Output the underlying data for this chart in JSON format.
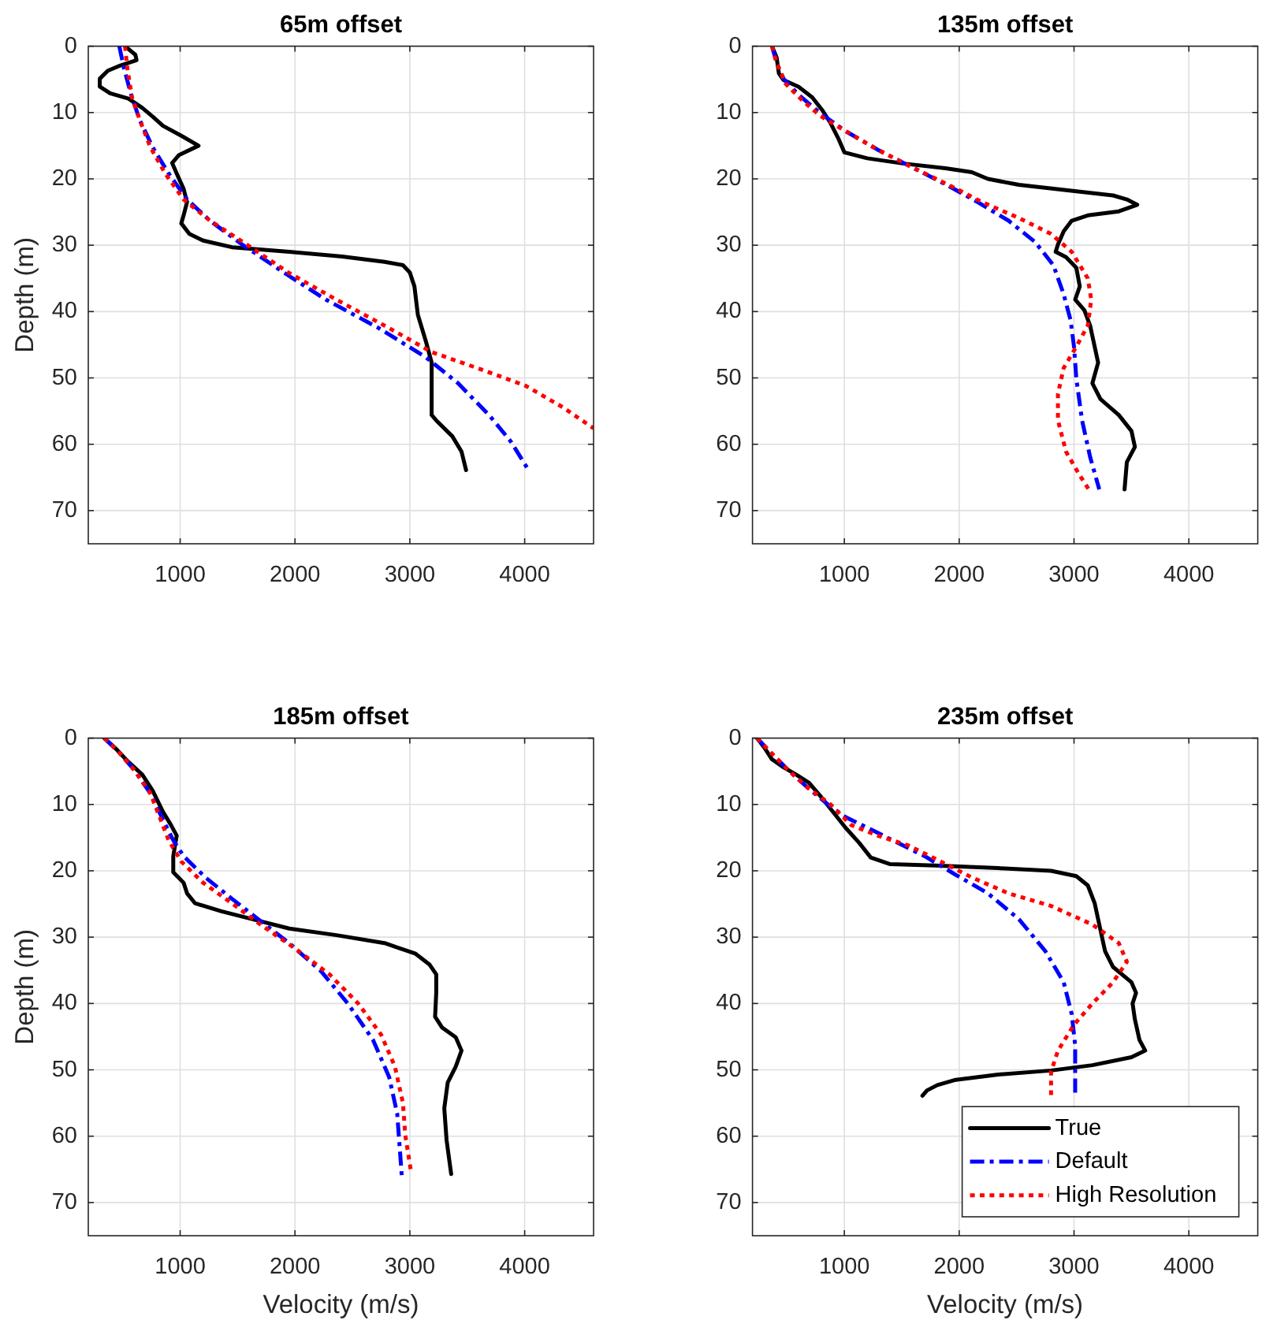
{
  "chart_data": [
    {
      "type": "line",
      "title": "65m offset",
      "ylabel": "Depth (m)",
      "xlim": [
        200,
        4600
      ],
      "xticks": [
        1000,
        2000,
        3000,
        4000
      ],
      "ylim": [
        75,
        0
      ],
      "yticks": [
        0,
        10,
        20,
        30,
        40,
        50,
        60,
        70
      ],
      "grid": true,
      "series": [
        {
          "color": "#000000",
          "line_style": "solid",
          "x": [
            520,
            610,
            620,
            480,
            370,
            300,
            300,
            390,
            550,
            670,
            760,
            850,
            1010,
            1160,
            990,
            930,
            980,
            1030,
            1060,
            1030,
            1010,
            1080,
            1200,
            1450,
            1950,
            2410,
            2780,
            2940,
            3000,
            3040,
            3070,
            3140,
            3190,
            3190,
            3230,
            3370,
            3450,
            3490
          ],
          "values": [
            0,
            1.3,
            2.1,
            2.9,
            3.7,
            4.9,
            6.1,
            7.1,
            7.9,
            9.3,
            10.6,
            12.0,
            13.5,
            15.0,
            16.4,
            17.6,
            19.6,
            21.5,
            23.5,
            25.5,
            26.7,
            28.3,
            29.3,
            30.3,
            31.0,
            31.7,
            32.5,
            33.0,
            34.1,
            36.2,
            40.5,
            44.5,
            47.7,
            55.6,
            56.4,
            58.8,
            61.1,
            63.9
          ]
        },
        {
          "color": "#0000ff",
          "line_style": "dashed",
          "x": [
            470,
            510,
            580,
            650,
            760,
            900,
            1060,
            1260,
            1540,
            1910,
            2270,
            2730,
            3140,
            3420,
            3690,
            3880,
            4030
          ],
          "values": [
            0,
            3.3,
            7.7,
            11.2,
            15.2,
            19.2,
            23.1,
            26.3,
            29.9,
            34.2,
            38.2,
            42.5,
            46.9,
            50.8,
            55.6,
            59.6,
            63.8
          ]
        },
        {
          "color": "#ff0000",
          "line_style": "dotted",
          "x": [
            520,
            540,
            580,
            650,
            740,
            870,
            1030,
            1260,
            1580,
            1950,
            2360,
            2820,
            3190,
            3650,
            4010,
            4330,
            4600
          ],
          "values": [
            0,
            3.3,
            7.7,
            11.2,
            15.2,
            19.2,
            23.1,
            26.3,
            29.9,
            34.2,
            38.2,
            42.5,
            46.1,
            48.9,
            51.2,
            54.4,
            57.6
          ]
        }
      ]
    },
    {
      "type": "line",
      "title": "135m offset",
      "xlim": [
        200,
        4600
      ],
      "xticks": [
        1000,
        2000,
        3000,
        4000
      ],
      "ylim": [
        75,
        0
      ],
      "yticks": [
        0,
        10,
        20,
        30,
        40,
        50,
        60,
        70
      ],
      "grid": true,
      "series": [
        {
          "color": "#000000",
          "line_style": "solid",
          "x": [
            370,
            410,
            430,
            470,
            600,
            720,
            810,
            880,
            950,
            1000,
            1200,
            1520,
            1880,
            2110,
            2250,
            2520,
            2930,
            3340,
            3460,
            3550,
            3390,
            3120,
            2980,
            2910,
            2860,
            2840,
            2930,
            3020,
            3050,
            3010,
            3090,
            3140,
            3180,
            3210,
            3160,
            3230,
            3390,
            3500,
            3530,
            3460,
            3440
          ],
          "values": [
            0,
            1.7,
            4.1,
            5.1,
            6.1,
            7.7,
            9.7,
            11.6,
            14.0,
            16.0,
            16.9,
            17.7,
            18.4,
            19.0,
            20.0,
            20.9,
            21.7,
            22.5,
            23.1,
            23.9,
            24.9,
            25.5,
            26.3,
            27.9,
            29.9,
            31.0,
            31.8,
            33.4,
            36.2,
            38.2,
            39.8,
            42.1,
            45.3,
            47.7,
            50.8,
            53.2,
            55.6,
            58.0,
            60.4,
            62.7,
            66.8
          ]
        },
        {
          "color": "#0000ff",
          "line_style": "dashed",
          "x": [
            370,
            410,
            470,
            600,
            790,
            1010,
            1290,
            1560,
            1880,
            2160,
            2430,
            2660,
            2820,
            2910,
            2970,
            3000,
            3020,
            3070,
            3140,
            3220
          ],
          "values": [
            0,
            2.5,
            4.9,
            7.3,
            10.1,
            12.8,
            15.6,
            18.0,
            20.8,
            23.5,
            26.3,
            29.5,
            33.0,
            37.4,
            41.3,
            45.3,
            50.1,
            56.4,
            61.9,
            66.8
          ]
        },
        {
          "color": "#ff0000",
          "line_style": "dotted",
          "x": [
            370,
            410,
            490,
            630,
            790,
            1010,
            1290,
            1610,
            1930,
            2200,
            2520,
            2800,
            2980,
            3120,
            3150,
            3120,
            3020,
            2910,
            2860,
            2860,
            2930,
            3050,
            3140
          ],
          "values": [
            0,
            2.5,
            5.7,
            8.1,
            10.5,
            12.8,
            15.6,
            18.4,
            21.1,
            23.5,
            25.9,
            28.3,
            31.0,
            35.0,
            38.2,
            42.1,
            45.3,
            48.5,
            52.4,
            56.4,
            61.1,
            64.7,
            67.1
          ]
        }
      ]
    },
    {
      "type": "line",
      "title": "185m offset",
      "xlabel": "Velocity (m/s)",
      "ylabel": "Depth (m)",
      "xlim": [
        200,
        4600
      ],
      "xticks": [
        1000,
        2000,
        3000,
        4000
      ],
      "ylim": [
        75,
        0
      ],
      "yticks": [
        0,
        10,
        20,
        30,
        40,
        50,
        60,
        70
      ],
      "grid": true,
      "series": [
        {
          "color": "#000000",
          "line_style": "solid",
          "x": [
            340,
            440,
            550,
            670,
            760,
            850,
            920,
            970,
            940,
            940,
            1030,
            1060,
            1130,
            1360,
            1630,
            1950,
            2360,
            2780,
            3050,
            3170,
            3230,
            3230,
            3220,
            3280,
            3400,
            3450,
            3400,
            3330,
            3300,
            3320,
            3360
          ],
          "values": [
            0,
            1.6,
            3.6,
            5.5,
            7.9,
            11.1,
            13.1,
            14.7,
            17.8,
            20.2,
            21.8,
            23.4,
            24.9,
            26.1,
            27.3,
            28.7,
            29.7,
            30.9,
            32.5,
            34.1,
            35.6,
            38.4,
            42.0,
            43.6,
            45.1,
            47.1,
            49.5,
            51.9,
            55.8,
            60.6,
            65.7
          ]
        },
        {
          "color": "#0000ff",
          "line_style": "dashed",
          "x": [
            340,
            460,
            600,
            740,
            850,
            940,
            1030,
            1220,
            1450,
            1680,
            1950,
            2230,
            2460,
            2680,
            2820,
            2890,
            2930
          ],
          "values": [
            0,
            2.0,
            4.8,
            8.3,
            12.3,
            15.4,
            17.8,
            21.0,
            24.2,
            27.3,
            30.9,
            35.2,
            40.0,
            45.5,
            51.1,
            56.6,
            66.0
          ]
        },
        {
          "color": "#ff0000",
          "line_style": "dotted",
          "x": [
            340,
            460,
            600,
            740,
            830,
            900,
            1010,
            1200,
            1450,
            1700,
            2000,
            2300,
            2550,
            2750,
            2870,
            2940,
            2960,
            3010
          ],
          "values": [
            0,
            2.0,
            4.8,
            8.3,
            12.3,
            15.4,
            18.6,
            21.8,
            24.9,
            28.1,
            31.7,
            35.6,
            40.0,
            44.7,
            49.5,
            55.0,
            59.8,
            65.3
          ]
        }
      ]
    },
    {
      "type": "line",
      "title": "235m offset",
      "xlabel": "Velocity (m/s)",
      "xlim": [
        200,
        4600
      ],
      "xticks": [
        1000,
        2000,
        3000,
        4000
      ],
      "ylim": [
        75,
        0
      ],
      "yticks": [
        0,
        10,
        20,
        30,
        40,
        50,
        60,
        70
      ],
      "grid": true,
      "legend": "bottom right",
      "series": [
        {
          "name": "True",
          "color": "#000000",
          "line_style": "solid",
          "x": [
            240,
            310,
            370,
            470,
            580,
            690,
            790,
            900,
            1010,
            1130,
            1230,
            1400,
            1790,
            2340,
            2800,
            3020,
            3120,
            3180,
            3220,
            3270,
            3340,
            3500,
            3540,
            3510,
            3530,
            3570,
            3620,
            3500,
            3160,
            2800,
            2340,
            1970,
            1810,
            1720,
            1680
          ],
          "values": [
            0,
            1.6,
            3.2,
            4.4,
            5.5,
            6.7,
            8.7,
            11.1,
            13.5,
            15.8,
            18.0,
            19.0,
            19.2,
            19.6,
            20.0,
            20.8,
            22.2,
            24.9,
            28.1,
            32.1,
            34.5,
            36.8,
            38.4,
            40.0,
            42.4,
            45.5,
            47.1,
            48.1,
            49.3,
            50.1,
            50.7,
            51.5,
            52.3,
            53.1,
            53.9
          ]
        },
        {
          "name": "Default",
          "color": "#0000ff",
          "line_style": "dashed",
          "x": [
            240,
            350,
            510,
            690,
            850,
            1010,
            1200,
            1420,
            1700,
            1970,
            2250,
            2520,
            2750,
            2910,
            2980,
            3010,
            3010
          ],
          "values": [
            0,
            2.0,
            4.8,
            7.6,
            9.9,
            11.9,
            13.5,
            15.4,
            17.8,
            20.6,
            23.4,
            27.3,
            32.1,
            36.8,
            41.6,
            46.3,
            53.5
          ]
        },
        {
          "name": "High Resolution",
          "color": "#ff0000",
          "line_style": "dotted",
          "x": [
            240,
            350,
            510,
            690,
            880,
            1060,
            1290,
            1560,
            1840,
            2110,
            2430,
            2800,
            3160,
            3390,
            3460,
            3340,
            3160,
            3000,
            2860,
            2800,
            2800
          ],
          "values": [
            0,
            2.0,
            4.8,
            7.6,
            10.0,
            13.1,
            14.7,
            16.2,
            18.6,
            21.0,
            23.4,
            25.3,
            28.1,
            30.9,
            33.7,
            36.8,
            40.0,
            43.2,
            47.1,
            50.3,
            53.9
          ]
        }
      ]
    }
  ]
}
